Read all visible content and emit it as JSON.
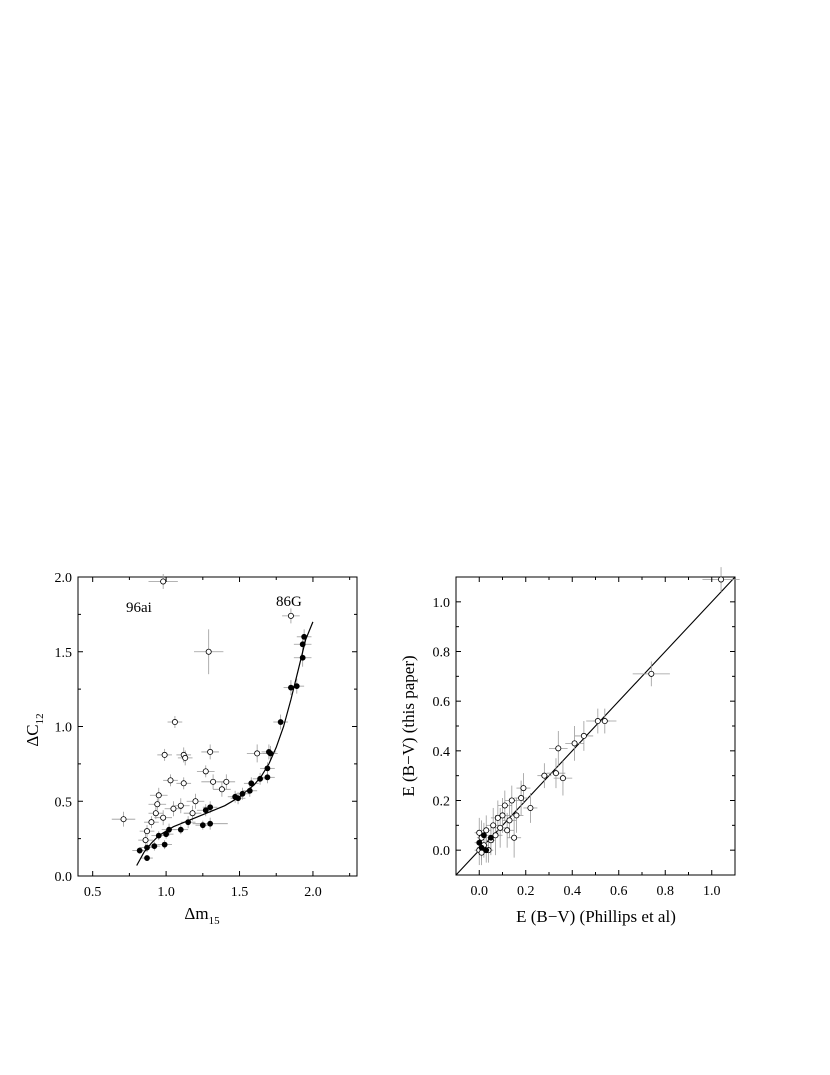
{
  "chart_data": [
    {
      "type": "scatter",
      "xlabel": "Δm",
      "xlabel_sub": "15",
      "ylabel": "ΔC",
      "ylabel_sub": "12",
      "xlim": [
        0.4,
        2.3
      ],
      "ylim": [
        0.0,
        2.0
      ],
      "xticks": [
        "0.5",
        "1.0",
        "1.5",
        "2.0"
      ],
      "yticks": [
        "0.0",
        "0.5",
        "1.0",
        "1.5",
        "2.0"
      ],
      "grid": false,
      "annotations": [
        {
          "text": "96ai",
          "x": 0.94,
          "y": 1.84
        },
        {
          "text": "86G",
          "x": 1.81,
          "y": 1.77
        }
      ],
      "series": [
        {
          "marker": "filled-circle",
          "points": [
            {
              "x": 0.82,
              "y": 0.17,
              "ex": 0.05,
              "ey": 0.02
            },
            {
              "x": 0.87,
              "y": 0.12,
              "ex": 0.04,
              "ey": 0.02
            },
            {
              "x": 0.87,
              "y": 0.19,
              "ex": 0.05,
              "ey": 0.03
            },
            {
              "x": 0.92,
              "y": 0.2,
              "ex": 0.04,
              "ey": 0.03
            },
            {
              "x": 0.95,
              "y": 0.27,
              "ex": 0.05,
              "ey": 0.03
            },
            {
              "x": 0.99,
              "y": 0.21,
              "ex": 0.05,
              "ey": 0.03
            },
            {
              "x": 1.0,
              "y": 0.28,
              "ex": 0.05,
              "ey": 0.03
            },
            {
              "x": 1.02,
              "y": 0.31,
              "ex": 0.05,
              "ey": 0.04
            },
            {
              "x": 1.1,
              "y": 0.31,
              "ex": 0.05,
              "ey": 0.03
            },
            {
              "x": 1.15,
              "y": 0.36,
              "ex": 0.05,
              "ey": 0.04
            },
            {
              "x": 1.25,
              "y": 0.34,
              "ex": 0.05,
              "ey": 0.03
            },
            {
              "x": 1.27,
              "y": 0.44,
              "ex": 0.06,
              "ey": 0.04
            },
            {
              "x": 1.3,
              "y": 0.35,
              "ex": 0.12,
              "ey": 0.04
            },
            {
              "x": 1.3,
              "y": 0.46,
              "ex": 0.05,
              "ey": 0.04
            },
            {
              "x": 1.47,
              "y": 0.53,
              "ex": 0.05,
              "ey": 0.04
            },
            {
              "x": 1.49,
              "y": 0.52,
              "ex": 0.05,
              "ey": 0.04
            },
            {
              "x": 1.52,
              "y": 0.55,
              "ex": 0.05,
              "ey": 0.04
            },
            {
              "x": 1.57,
              "y": 0.57,
              "ex": 0.05,
              "ey": 0.04
            },
            {
              "x": 1.58,
              "y": 0.62,
              "ex": 0.05,
              "ey": 0.04
            },
            {
              "x": 1.64,
              "y": 0.65,
              "ex": 0.05,
              "ey": 0.04
            },
            {
              "x": 1.69,
              "y": 0.66,
              "ex": 0.05,
              "ey": 0.04
            },
            {
              "x": 1.69,
              "y": 0.72,
              "ex": 0.05,
              "ey": 0.04
            },
            {
              "x": 1.7,
              "y": 0.83,
              "ex": 0.05,
              "ey": 0.05
            },
            {
              "x": 1.71,
              "y": 0.82,
              "ex": 0.05,
              "ey": 0.05
            },
            {
              "x": 1.78,
              "y": 1.03,
              "ex": 0.05,
              "ey": 0.05
            },
            {
              "x": 1.85,
              "y": 1.26,
              "ex": 0.05,
              "ey": 0.05
            },
            {
              "x": 1.89,
              "y": 1.27,
              "ex": 0.05,
              "ey": 0.05
            },
            {
              "x": 1.93,
              "y": 1.46,
              "ex": 0.06,
              "ey": 0.06
            },
            {
              "x": 1.93,
              "y": 1.55,
              "ex": 0.06,
              "ey": 0.06
            },
            {
              "x": 1.94,
              "y": 1.6,
              "ex": 0.05,
              "ey": 0.05
            }
          ]
        },
        {
          "marker": "open-circle",
          "points": [
            {
              "x": 0.71,
              "y": 0.38,
              "ex": 0.08,
              "ey": 0.05
            },
            {
              "x": 0.86,
              "y": 0.24,
              "ex": 0.05,
              "ey": 0.05
            },
            {
              "x": 0.87,
              "y": 0.3,
              "ex": 0.05,
              "ey": 0.04
            },
            {
              "x": 0.9,
              "y": 0.36,
              "ex": 0.05,
              "ey": 0.04
            },
            {
              "x": 0.93,
              "y": 0.42,
              "ex": 0.05,
              "ey": 0.04
            },
            {
              "x": 0.94,
              "y": 0.48,
              "ex": 0.06,
              "ey": 0.04
            },
            {
              "x": 0.95,
              "y": 0.54,
              "ex": 0.06,
              "ey": 0.05
            },
            {
              "x": 0.98,
              "y": 0.39,
              "ex": 0.06,
              "ey": 0.05
            },
            {
              "x": 0.98,
              "y": 1.97,
              "ex": 0.1,
              "ey": 0.05
            },
            {
              "x": 0.99,
              "y": 0.81,
              "ex": 0.05,
              "ey": 0.04
            },
            {
              "x": 1.03,
              "y": 0.64,
              "ex": 0.05,
              "ey": 0.04
            },
            {
              "x": 1.05,
              "y": 0.45,
              "ex": 0.06,
              "ey": 0.05
            },
            {
              "x": 1.06,
              "y": 1.03,
              "ex": 0.05,
              "ey": 0.04
            },
            {
              "x": 1.1,
              "y": 0.47,
              "ex": 0.06,
              "ey": 0.05
            },
            {
              "x": 1.12,
              "y": 0.81,
              "ex": 0.05,
              "ey": 0.05
            },
            {
              "x": 1.12,
              "y": 0.62,
              "ex": 0.05,
              "ey": 0.04
            },
            {
              "x": 1.13,
              "y": 0.79,
              "ex": 0.05,
              "ey": 0.05
            },
            {
              "x": 1.18,
              "y": 0.42,
              "ex": 0.06,
              "ey": 0.05
            },
            {
              "x": 1.2,
              "y": 0.5,
              "ex": 0.06,
              "ey": 0.05
            },
            {
              "x": 1.27,
              "y": 0.7,
              "ex": 0.06,
              "ey": 0.04
            },
            {
              "x": 1.29,
              "y": 1.5,
              "ex": 0.1,
              "ey": 0.15
            },
            {
              "x": 1.3,
              "y": 0.83,
              "ex": 0.06,
              "ey": 0.05
            },
            {
              "x": 1.32,
              "y": 0.63,
              "ex": 0.08,
              "ey": 0.05
            },
            {
              "x": 1.38,
              "y": 0.58,
              "ex": 0.06,
              "ey": 0.05
            },
            {
              "x": 1.41,
              "y": 0.63,
              "ex": 0.06,
              "ey": 0.05
            },
            {
              "x": 1.62,
              "y": 0.82,
              "ex": 0.07,
              "ey": 0.06
            },
            {
              "x": 1.85,
              "y": 1.74,
              "ex": 0.06,
              "ey": 0.05
            }
          ]
        }
      ],
      "fit_curve": {
        "x": [
          0.8,
          0.85,
          0.9,
          0.95,
          1.0,
          1.05,
          1.1,
          1.15,
          1.2,
          1.25,
          1.3,
          1.35,
          1.4,
          1.45,
          1.5,
          1.55,
          1.6,
          1.65,
          1.7,
          1.75,
          1.8,
          1.85,
          1.9,
          1.95,
          2.0
        ],
        "y": [
          0.07,
          0.16,
          0.22,
          0.27,
          0.3,
          0.33,
          0.35,
          0.37,
          0.39,
          0.41,
          0.43,
          0.45,
          0.47,
          0.5,
          0.53,
          0.57,
          0.61,
          0.67,
          0.75,
          0.86,
          1.0,
          1.18,
          1.38,
          1.58,
          1.7
        ]
      }
    },
    {
      "type": "scatter",
      "xlabel": "E (B−V) (Phillips et al)",
      "ylabel": "E (B−V) (this paper)",
      "xlim": [
        -0.1,
        1.1
      ],
      "ylim": [
        -0.1,
        1.1
      ],
      "xticks": [
        "0.0",
        "0.2",
        "0.4",
        "0.6",
        "0.8",
        "1.0"
      ],
      "yticks": [
        "0.0",
        "0.2",
        "0.4",
        "0.6",
        "0.8",
        "1.0"
      ],
      "grid": false,
      "identity_line": true,
      "series": [
        {
          "marker": "open-circle",
          "points": [
            {
              "x": 0.0,
              "y": 0.0,
              "ex": 0.02,
              "ey": 0.06
            },
            {
              "x": 0.01,
              "y": 0.05,
              "ex": 0.02,
              "ey": 0.07
            },
            {
              "x": 0.0,
              "y": 0.07,
              "ex": 0.02,
              "ey": 0.06
            },
            {
              "x": 0.02,
              "y": 0.02,
              "ex": 0.02,
              "ey": 0.05
            },
            {
              "x": 0.03,
              "y": 0.08,
              "ex": 0.02,
              "ey": 0.06
            },
            {
              "x": 0.01,
              "y": -0.01,
              "ex": 0.02,
              "ey": 0.05
            },
            {
              "x": 0.05,
              "y": 0.04,
              "ex": 0.02,
              "ey": 0.06
            },
            {
              "x": 0.04,
              "y": 0.0,
              "ex": 0.02,
              "ey": 0.05
            },
            {
              "x": 0.06,
              "y": 0.1,
              "ex": 0.03,
              "ey": 0.07
            },
            {
              "x": 0.07,
              "y": 0.06,
              "ex": 0.03,
              "ey": 0.08
            },
            {
              "x": 0.08,
              "y": 0.13,
              "ex": 0.03,
              "ey": 0.07
            },
            {
              "x": 0.09,
              "y": 0.09,
              "ex": 0.03,
              "ey": 0.08
            },
            {
              "x": 0.1,
              "y": 0.14,
              "ex": 0.03,
              "ey": 0.07
            },
            {
              "x": 0.11,
              "y": 0.18,
              "ex": 0.03,
              "ey": 0.06
            },
            {
              "x": 0.12,
              "y": 0.08,
              "ex": 0.03,
              "ey": 0.07
            },
            {
              "x": 0.13,
              "y": 0.12,
              "ex": 0.03,
              "ey": 0.07
            },
            {
              "x": 0.14,
              "y": 0.2,
              "ex": 0.03,
              "ey": 0.06
            },
            {
              "x": 0.15,
              "y": 0.05,
              "ex": 0.03,
              "ey": 0.08
            },
            {
              "x": 0.16,
              "y": 0.14,
              "ex": 0.03,
              "ey": 0.07
            },
            {
              "x": 0.18,
              "y": 0.21,
              "ex": 0.03,
              "ey": 0.07
            },
            {
              "x": 0.19,
              "y": 0.25,
              "ex": 0.03,
              "ey": 0.06
            },
            {
              "x": 0.22,
              "y": 0.17,
              "ex": 0.03,
              "ey": 0.06
            },
            {
              "x": 0.28,
              "y": 0.3,
              "ex": 0.03,
              "ey": 0.05
            },
            {
              "x": 0.33,
              "y": 0.31,
              "ex": 0.04,
              "ey": 0.06
            },
            {
              "x": 0.34,
              "y": 0.41,
              "ex": 0.04,
              "ey": 0.07
            },
            {
              "x": 0.36,
              "y": 0.29,
              "ex": 0.04,
              "ey": 0.07
            },
            {
              "x": 0.41,
              "y": 0.43,
              "ex": 0.04,
              "ey": 0.07
            },
            {
              "x": 0.45,
              "y": 0.46,
              "ex": 0.04,
              "ey": 0.06
            },
            {
              "x": 0.51,
              "y": 0.52,
              "ex": 0.05,
              "ey": 0.05
            },
            {
              "x": 0.54,
              "y": 0.52,
              "ex": 0.05,
              "ey": 0.05
            },
            {
              "x": 0.74,
              "y": 0.71,
              "ex": 0.08,
              "ey": 0.05
            },
            {
              "x": 1.04,
              "y": 1.09,
              "ex": 0.08,
              "ey": 0.05
            }
          ]
        },
        {
          "marker": "filled-circle",
          "points": [
            {
              "x": 0.0,
              "y": 0.03,
              "ex": 0.02,
              "ey": 0.05
            },
            {
              "x": 0.01,
              "y": 0.01,
              "ex": 0.02,
              "ey": 0.05
            },
            {
              "x": 0.02,
              "y": 0.06,
              "ex": 0.02,
              "ey": 0.05
            },
            {
              "x": 0.03,
              "y": 0.0,
              "ex": 0.02,
              "ey": 0.05
            },
            {
              "x": 0.05,
              "y": 0.05,
              "ex": 0.02,
              "ey": 0.05
            }
          ]
        }
      ]
    }
  ]
}
